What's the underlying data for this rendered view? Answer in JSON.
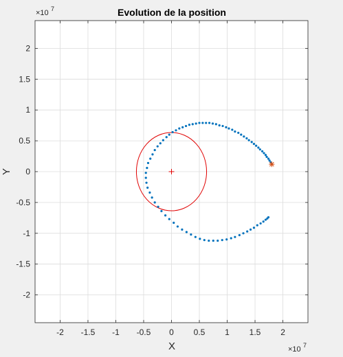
{
  "chart_data": {
    "type": "scatter",
    "title": "Evolution de la position",
    "xlabel": "X",
    "ylabel": "Y",
    "x_multiplier_label": "×10",
    "x_multiplier_exponent": "7",
    "y_multiplier_label": "×10",
    "y_multiplier_exponent": "7",
    "xlim": [
      -2.45,
      2.45
    ],
    "ylim": [
      -2.45,
      2.45
    ],
    "grid": true,
    "xticks": [
      -2,
      -1.5,
      -1,
      -0.5,
      0,
      0.5,
      1,
      1.5,
      2
    ],
    "xtick_labels": [
      "-2",
      "-1.5",
      "-1",
      "-0.5",
      "0",
      "0.5",
      "1",
      "1.5",
      "2"
    ],
    "yticks": [
      2,
      1.5,
      1,
      0.5,
      0,
      -0.5,
      -1,
      -1.5,
      -2
    ],
    "ytick_labels": [
      "2",
      "1.5",
      "1",
      "0.5",
      "0",
      "-0.5",
      "-1",
      "-1.5",
      "-2"
    ],
    "colors": {
      "trajectory": "#0072bd",
      "circle": "#e00000",
      "center_marker": "#e00000",
      "start_marker": "#d95319",
      "grid": "#dcdcdc",
      "axes_bg": "#ffffff",
      "figure_bg": "#f0f0f0"
    },
    "circle": {
      "center": [
        0,
        0
      ],
      "rx": 0.63,
      "ry": 0.635
    },
    "center_marker": {
      "x": 0,
      "y": 0,
      "symbol": "+"
    },
    "start_marker": {
      "x": 1.8,
      "y": 0.12,
      "symbol": "*"
    },
    "series": [
      {
        "marker": "dot",
        "x": [
          1.8,
          1.78,
          1.76,
          1.74,
          1.71,
          1.69,
          1.66,
          1.63,
          1.59,
          1.56,
          1.52,
          1.48,
          1.44,
          1.39,
          1.35,
          1.3,
          1.25,
          1.2,
          1.14,
          1.09,
          1.03,
          0.98,
          0.92,
          0.86,
          0.8,
          0.74,
          0.68,
          0.62,
          0.56,
          0.5,
          0.44,
          0.38,
          0.32,
          0.26,
          0.2,
          0.14,
          0.08,
          0.02,
          -0.04,
          -0.09,
          -0.15,
          -0.2,
          -0.25,
          -0.3,
          -0.34,
          -0.38,
          -0.42,
          -0.44,
          -0.46,
          -0.46,
          -0.45,
          -0.43,
          -0.39,
          -0.35,
          -0.3,
          -0.24,
          -0.18,
          -0.11,
          -0.04,
          0.04,
          0.11,
          0.19,
          0.27,
          0.35,
          0.43,
          0.51,
          0.59,
          0.67,
          0.75,
          0.83,
          0.91,
          0.99,
          1.07,
          1.14,
          1.22,
          1.29,
          1.36,
          1.42,
          1.48,
          1.54,
          1.6,
          1.65,
          1.69,
          1.72,
          1.74
        ],
        "y": [
          0.12,
          0.15,
          0.18,
          0.21,
          0.24,
          0.27,
          0.3,
          0.33,
          0.36,
          0.39,
          0.42,
          0.45,
          0.48,
          0.51,
          0.54,
          0.57,
          0.6,
          0.63,
          0.65,
          0.68,
          0.7,
          0.72,
          0.74,
          0.75,
          0.77,
          0.78,
          0.79,
          0.79,
          0.79,
          0.79,
          0.78,
          0.77,
          0.76,
          0.74,
          0.72,
          0.7,
          0.67,
          0.64,
          0.6,
          0.56,
          0.51,
          0.46,
          0.41,
          0.35,
          0.28,
          0.21,
          0.14,
          0.06,
          -0.02,
          -0.1,
          -0.18,
          -0.26,
          -0.34,
          -0.42,
          -0.5,
          -0.57,
          -0.64,
          -0.71,
          -0.77,
          -0.83,
          -0.89,
          -0.94,
          -0.98,
          -1.02,
          -1.06,
          -1.09,
          -1.11,
          -1.12,
          -1.12,
          -1.12,
          -1.11,
          -1.1,
          -1.08,
          -1.06,
          -1.03,
          -1.0,
          -0.97,
          -0.94,
          -0.91,
          -0.87,
          -0.84,
          -0.81,
          -0.78,
          -0.76,
          -0.74
        ]
      }
    ]
  }
}
